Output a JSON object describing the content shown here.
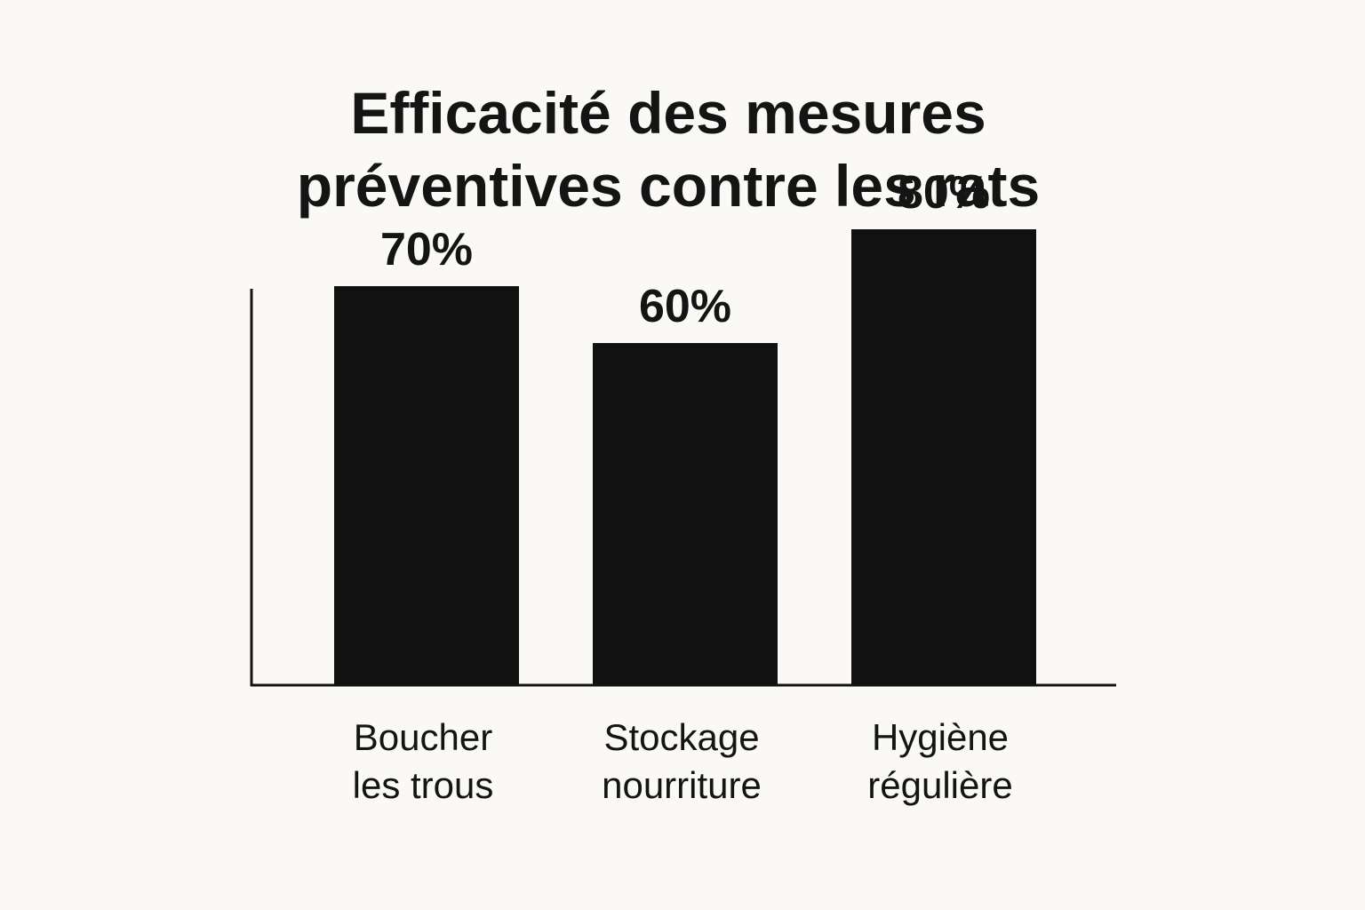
{
  "chart_data": {
    "type": "bar",
    "title_lines": [
      "Efficacité des mesures",
      "préventives contre les rats"
    ],
    "categories": [
      [
        "Boucher",
        "les trous"
      ],
      [
        "Stockage",
        "nourriture"
      ],
      [
        "Hygiène",
        "régulière"
      ]
    ],
    "values": [
      70,
      60,
      80
    ],
    "value_labels": [
      "70%",
      "60%",
      "80%"
    ],
    "ylim": [
      0,
      100
    ],
    "grid": false,
    "legend": "none",
    "colors": {
      "bar": "#111111",
      "background": "#faf9f5",
      "text": "#141414"
    }
  }
}
